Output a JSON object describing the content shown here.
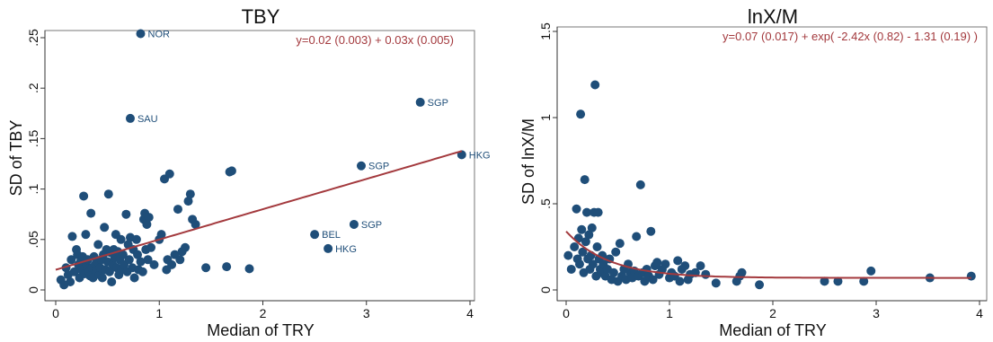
{
  "chart_data": [
    {
      "type": "scatter",
      "title": "TBY",
      "xlabel": "Median of TRY",
      "ylabel": "SD of TBY",
      "xlim": [
        0,
        4
      ],
      "ylim": [
        0,
        0.25
      ],
      "xticks": [
        "0",
        "1",
        "2",
        "3",
        "4"
      ],
      "yticks": [
        "0",
        ".05",
        ".1",
        ".15",
        ".2",
        ".25"
      ],
      "annotation": "y=0.02 (0.003) + 0.03x (0.005)",
      "fit_line": {
        "type": "linear",
        "intercept": 0.02,
        "slope": 0.03
      },
      "labeled_points": [
        {
          "label": "NOR",
          "x": 0.82,
          "y": 0.254
        },
        {
          "label": "SAU",
          "x": 0.72,
          "y": 0.17
        },
        {
          "label": "SGP",
          "x": 3.52,
          "y": 0.186
        },
        {
          "label": "SGP",
          "x": 2.95,
          "y": 0.123
        },
        {
          "label": "SGP",
          "x": 2.88,
          "y": 0.065
        },
        {
          "label": "HKG",
          "x": 3.92,
          "y": 0.134
        },
        {
          "label": "BEL",
          "x": 2.5,
          "y": 0.055
        },
        {
          "label": "HKG",
          "x": 2.63,
          "y": 0.041
        }
      ],
      "points": [
        [
          0.05,
          0.01
        ],
        [
          0.08,
          0.005
        ],
        [
          0.1,
          0.022
        ],
        [
          0.12,
          0.015
        ],
        [
          0.14,
          0.008
        ],
        [
          0.15,
          0.03
        ],
        [
          0.16,
          0.053
        ],
        [
          0.18,
          0.018
        ],
        [
          0.2,
          0.04
        ],
        [
          0.21,
          0.035
        ],
        [
          0.22,
          0.025
        ],
        [
          0.23,
          0.012
        ],
        [
          0.24,
          0.028
        ],
        [
          0.25,
          0.02
        ],
        [
          0.26,
          0.033
        ],
        [
          0.27,
          0.093
        ],
        [
          0.28,
          0.016
        ],
        [
          0.29,
          0.055
        ],
        [
          0.3,
          0.024
        ],
        [
          0.31,
          0.03
        ],
        [
          0.32,
          0.018
        ],
        [
          0.33,
          0.014
        ],
        [
          0.34,
          0.076
        ],
        [
          0.35,
          0.022
        ],
        [
          0.36,
          0.012
        ],
        [
          0.37,
          0.033
        ],
        [
          0.38,
          0.025
        ],
        [
          0.39,
          0.018
        ],
        [
          0.4,
          0.028
        ],
        [
          0.41,
          0.045
        ],
        [
          0.42,
          0.015
        ],
        [
          0.43,
          0.022
        ],
        [
          0.44,
          0.03
        ],
        [
          0.45,
          0.012
        ],
        [
          0.46,
          0.035
        ],
        [
          0.47,
          0.062
        ],
        [
          0.48,
          0.02
        ],
        [
          0.49,
          0.04
        ],
        [
          0.5,
          0.028
        ],
        [
          0.51,
          0.095
        ],
        [
          0.52,
          0.018
        ],
        [
          0.53,
          0.037
        ],
        [
          0.54,
          0.008
        ],
        [
          0.55,
          0.025
        ],
        [
          0.56,
          0.04
        ],
        [
          0.57,
          0.032
        ],
        [
          0.58,
          0.055
        ],
        [
          0.59,
          0.022
        ],
        [
          0.6,
          0.038
        ],
        [
          0.61,
          0.015
        ],
        [
          0.62,
          0.03
        ],
        [
          0.63,
          0.05
        ],
        [
          0.64,
          0.02
        ],
        [
          0.65,
          0.035
        ],
        [
          0.66,
          0.025
        ],
        [
          0.68,
          0.075
        ],
        [
          0.69,
          0.018
        ],
        [
          0.7,
          0.045
        ],
        [
          0.71,
          0.03
        ],
        [
          0.72,
          0.052
        ],
        [
          0.74,
          0.022
        ],
        [
          0.75,
          0.04
        ],
        [
          0.76,
          0.012
        ],
        [
          0.78,
          0.05
        ],
        [
          0.79,
          0.035
        ],
        [
          0.8,
          0.02
        ],
        [
          0.82,
          0.028
        ],
        [
          0.84,
          0.018
        ],
        [
          0.85,
          0.07
        ],
        [
          0.86,
          0.076
        ],
        [
          0.87,
          0.04
        ],
        [
          0.88,
          0.065
        ],
        [
          0.89,
          0.03
        ],
        [
          0.9,
          0.072
        ],
        [
          0.92,
          0.042
        ],
        [
          0.95,
          0.025
        ],
        [
          1.0,
          0.05
        ],
        [
          1.02,
          0.055
        ],
        [
          1.05,
          0.11
        ],
        [
          1.07,
          0.02
        ],
        [
          1.08,
          0.03
        ],
        [
          1.1,
          0.115
        ],
        [
          1.12,
          0.025
        ],
        [
          1.15,
          0.035
        ],
        [
          1.18,
          0.08
        ],
        [
          1.2,
          0.03
        ],
        [
          1.22,
          0.038
        ],
        [
          1.25,
          0.042
        ],
        [
          1.28,
          0.088
        ],
        [
          1.3,
          0.095
        ],
        [
          1.32,
          0.07
        ],
        [
          1.35,
          0.065
        ],
        [
          1.45,
          0.022
        ],
        [
          1.65,
          0.023
        ],
        [
          1.68,
          0.117
        ],
        [
          1.7,
          0.118
        ],
        [
          1.87,
          0.021
        ]
      ]
    },
    {
      "type": "scatter",
      "title": "lnX/M",
      "xlabel": "Median of TRY",
      "ylabel": "SD of lnX/M",
      "xlim": [
        0,
        4
      ],
      "ylim": [
        0,
        1.5
      ],
      "xticks": [
        "0",
        "1",
        "2",
        "3",
        "4"
      ],
      "yticks": [
        "0",
        ".5",
        "1",
        "1.5"
      ],
      "annotation": "y=0.07 (0.017) + exp( -2.42x (0.82) - 1.31 (0.19) )",
      "fit_line": {
        "type": "exponential",
        "a": 0.07,
        "b": -2.42,
        "c": -1.31
      },
      "points": [
        [
          0.02,
          0.2
        ],
        [
          0.05,
          0.12
        ],
        [
          0.08,
          0.25
        ],
        [
          0.1,
          0.47
        ],
        [
          0.11,
          0.18
        ],
        [
          0.12,
          0.3
        ],
        [
          0.13,
          0.15
        ],
        [
          0.14,
          1.02
        ],
        [
          0.15,
          0.35
        ],
        [
          0.16,
          0.22
        ],
        [
          0.17,
          0.1
        ],
        [
          0.18,
          0.64
        ],
        [
          0.19,
          0.28
        ],
        [
          0.2,
          0.45
        ],
        [
          0.21,
          0.18
        ],
        [
          0.22,
          0.32
        ],
        [
          0.23,
          0.12
        ],
        [
          0.24,
          0.2
        ],
        [
          0.25,
          0.36
        ],
        [
          0.26,
          0.15
        ],
        [
          0.27,
          0.45
        ],
        [
          0.28,
          1.19
        ],
        [
          0.29,
          0.08
        ],
        [
          0.3,
          0.25
        ],
        [
          0.31,
          0.45
        ],
        [
          0.32,
          0.18
        ],
        [
          0.33,
          0.12
        ],
        [
          0.34,
          0.1
        ],
        [
          0.35,
          0.2
        ],
        [
          0.36,
          0.15
        ],
        [
          0.38,
          0.08
        ],
        [
          0.4,
          0.12
        ],
        [
          0.42,
          0.18
        ],
        [
          0.44,
          0.06
        ],
        [
          0.46,
          0.1
        ],
        [
          0.48,
          0.22
        ],
        [
          0.5,
          0.05
        ],
        [
          0.52,
          0.27
        ],
        [
          0.54,
          0.08
        ],
        [
          0.56,
          0.12
        ],
        [
          0.58,
          0.06
        ],
        [
          0.6,
          0.15
        ],
        [
          0.62,
          0.1
        ],
        [
          0.64,
          0.07
        ],
        [
          0.66,
          0.11
        ],
        [
          0.68,
          0.31
        ],
        [
          0.7,
          0.08
        ],
        [
          0.72,
          0.61
        ],
        [
          0.74,
          0.1
        ],
        [
          0.76,
          0.05
        ],
        [
          0.78,
          0.12
        ],
        [
          0.8,
          0.08
        ],
        [
          0.82,
          0.34
        ],
        [
          0.84,
          0.06
        ],
        [
          0.86,
          0.14
        ],
        [
          0.88,
          0.16
        ],
        [
          0.9,
          0.09
        ],
        [
          0.93,
          0.12
        ],
        [
          0.96,
          0.15
        ],
        [
          1.0,
          0.07
        ],
        [
          1.02,
          0.1
        ],
        [
          1.05,
          0.08
        ],
        [
          1.08,
          0.17
        ],
        [
          1.1,
          0.05
        ],
        [
          1.12,
          0.12
        ],
        [
          1.15,
          0.14
        ],
        [
          1.18,
          0.06
        ],
        [
          1.2,
          0.09
        ],
        [
          1.25,
          0.1
        ],
        [
          1.3,
          0.14
        ],
        [
          1.35,
          0.09
        ],
        [
          1.45,
          0.04
        ],
        [
          1.65,
          0.05
        ],
        [
          1.68,
          0.08
        ],
        [
          1.7,
          0.1
        ],
        [
          1.87,
          0.03
        ],
        [
          2.5,
          0.05
        ],
        [
          2.63,
          0.05
        ],
        [
          2.88,
          0.05
        ],
        [
          2.95,
          0.11
        ],
        [
          3.52,
          0.07
        ],
        [
          3.92,
          0.08
        ]
      ]
    }
  ]
}
